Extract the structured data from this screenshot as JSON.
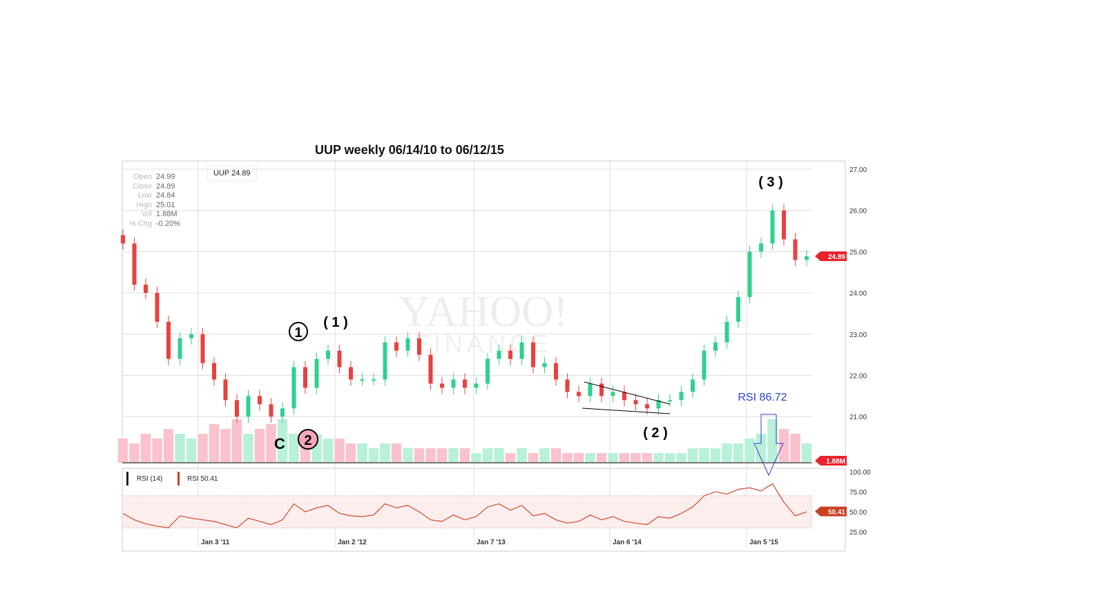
{
  "chart_data": {
    "type": "candlestick",
    "title": "UUP weekly  06/14/10 to 06/12/15",
    "symbol_label": "UUP 24.89",
    "ohlc_panel": {
      "Open": "24.99",
      "Close": "24.89",
      "Low": "24.84",
      "High": "25.01",
      "Vol": "1.88M",
      "% Chg": "-0.20%"
    },
    "ylim": [
      20.3,
      27.2
    ],
    "yticks": [
      "27.00",
      "26.00",
      "25.00",
      "24.00",
      "23.00",
      "22.00",
      "21.00"
    ],
    "xticks": [
      "Jan 3 '11",
      "Jan 2 '12",
      "Jan 7 '13",
      "Jan 6 '14",
      "Jan 5 '15"
    ],
    "last_price": "24.89",
    "last_volume": "1.88M",
    "closes": [
      25.2,
      24.2,
      24.0,
      23.3,
      22.4,
      22.9,
      23.0,
      22.3,
      21.9,
      21.4,
      21.0,
      21.5,
      21.3,
      21.0,
      21.2,
      22.2,
      21.7,
      22.4,
      22.6,
      22.2,
      21.9,
      21.9,
      21.9,
      22.8,
      22.6,
      22.9,
      22.5,
      21.8,
      21.7,
      21.9,
      21.7,
      21.8,
      22.4,
      22.6,
      22.4,
      22.8,
      22.2,
      22.3,
      21.9,
      21.6,
      21.5,
      21.8,
      21.5,
      21.6,
      21.4,
      21.3,
      21.2,
      21.4,
      21.4,
      21.6,
      21.9,
      22.6,
      22.8,
      23.3,
      23.9,
      25.0,
      25.2,
      26.0,
      25.3,
      24.8,
      24.89
    ],
    "volume_rel": [
      0.5,
      0.4,
      0.6,
      0.5,
      0.7,
      0.6,
      0.5,
      0.6,
      0.8,
      0.7,
      0.9,
      0.6,
      0.7,
      0.8,
      0.9,
      0.6,
      0.5,
      0.6,
      0.5,
      0.5,
      0.4,
      0.4,
      0.3,
      0.4,
      0.4,
      0.3,
      0.3,
      0.3,
      0.3,
      0.3,
      0.3,
      0.2,
      0.3,
      0.3,
      0.2,
      0.3,
      0.2,
      0.3,
      0.3,
      0.2,
      0.2,
      0.2,
      0.2,
      0.2,
      0.2,
      0.2,
      0.2,
      0.2,
      0.2,
      0.2,
      0.3,
      0.3,
      0.3,
      0.4,
      0.4,
      0.5,
      0.6,
      0.9,
      0.7,
      0.6,
      0.4
    ],
    "rsi": {
      "label_period": "RSI (14)",
      "label_value": "RSI 50.41",
      "value": "50.41",
      "yticks": [
        "100.00",
        "75.00",
        "50.00",
        "25.00"
      ],
      "values": [
        48,
        40,
        35,
        32,
        30,
        45,
        42,
        40,
        38,
        34,
        30,
        42,
        38,
        34,
        40,
        60,
        50,
        55,
        58,
        48,
        45,
        44,
        46,
        60,
        55,
        58,
        50,
        40,
        38,
        46,
        40,
        44,
        56,
        60,
        52,
        58,
        45,
        48,
        40,
        36,
        38,
        46,
        40,
        44,
        38,
        36,
        34,
        44,
        42,
        48,
        56,
        70,
        75,
        72,
        78,
        80,
        76,
        85,
        62,
        45,
        50
      ]
    },
    "annotations": {
      "circle1": "1",
      "wave1": "( 1 )",
      "waveC": "C",
      "circle2": "2",
      "wave2": "( 2 )",
      "wave3": "( 3 )",
      "rsi_note": "RSI 86.72"
    },
    "watermark": "YAHOO! FINANCE",
    "colors": {
      "up": "#2fd18e",
      "down": "#e8413f",
      "annot": "#2a3fd0"
    }
  }
}
